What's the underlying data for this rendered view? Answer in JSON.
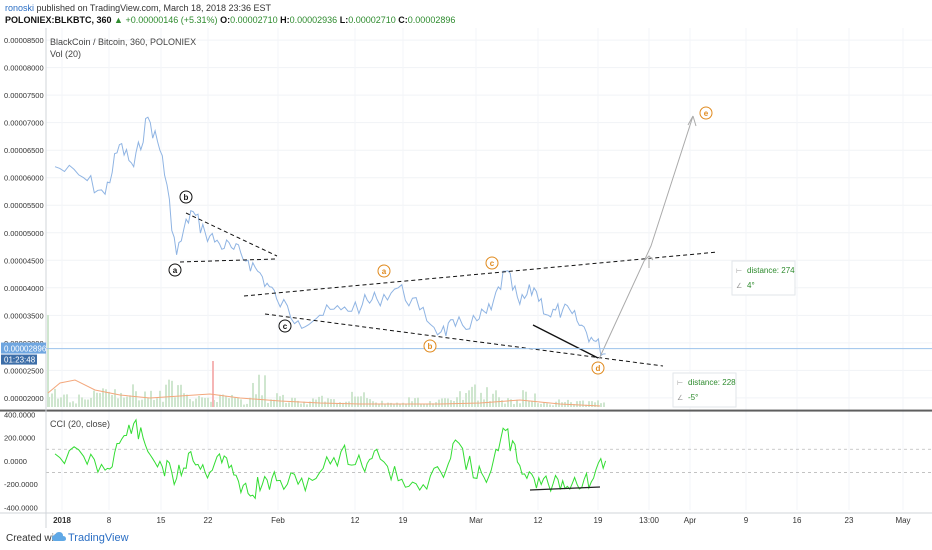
{
  "header": {
    "author": "ronoski",
    "published": "published on TradingView.com, March 18, 2018 23:36 EST",
    "symbol": "POLONIEX:BLKBTC, 360",
    "arrow": "▲",
    "change": "+0.00000146 (+5.31%)",
    "o_label": "O:",
    "o_value": "0.00002710",
    "h_label": "H:",
    "h_value": "0.00002936",
    "l_label": "L:",
    "l_value": "0.00002710",
    "c_label": "C:",
    "c_value": "0.00002896"
  },
  "footer": {
    "created": "Created with",
    "brand": "TradingView"
  },
  "colors": {
    "price": "#8fb4e3",
    "cci": "#33dd33",
    "volume": "#cfe6cf",
    "ema": "#f3a77c",
    "wave": "#e08a1e",
    "forecast": "#aaaaaa",
    "price_line": "#6fa6e0"
  },
  "chart_data": {
    "type": "line",
    "title": "BlackCoin / Bitcoin, 360, POLONIEX",
    "indicator_label": "Vol (20)",
    "cci_label": "CCI (20, close)",
    "y_axis_ticks": [
      "0.00008500",
      "0.00008000",
      "0.00007500",
      "0.00007000",
      "0.00006500",
      "0.00006000",
      "0.00005500",
      "0.00005000",
      "0.00004500",
      "0.00004000",
      "0.00003500",
      "0.00003000",
      "0.00002500",
      "0.00002000"
    ],
    "ylim": [
      1.78e-05,
      8.72e-05
    ],
    "current_price": "0.00002896",
    "countdown": "01:23:48",
    "cci_ticks": [
      "400.0000",
      "200.0000",
      "0.0000",
      "-200.0000",
      "-400.0000"
    ],
    "cci_ylim": [
      -430,
      420
    ],
    "x_axis_ticks": [
      "2018",
      "8",
      "15",
      "22",
      "Feb",
      "12",
      "19",
      "Mar",
      "12",
      "19",
      "13:00",
      "Apr",
      "9",
      "16",
      "23",
      "May"
    ],
    "x": [
      "Jan 01",
      "Jan 05",
      "Jan 08",
      "Jan 10",
      "Jan 12",
      "Jan 14",
      "Jan 16",
      "Jan 18",
      "Jan 20",
      "Jan 22",
      "Jan 24",
      "Jan 26",
      "Jan 28",
      "Jan 30",
      "Feb 01",
      "Feb 04",
      "Feb 07",
      "Feb 10",
      "Feb 13",
      "Feb 15",
      "Feb 18",
      "Feb 21",
      "Feb 24",
      "Feb 26",
      "Mar 01",
      "Mar 03",
      "Mar 05",
      "Mar 07",
      "Mar 09",
      "Mar 11",
      "Mar 13",
      "Mar 15",
      "Mar 17",
      "Mar 19"
    ],
    "series": [
      {
        "values": [
          6.2e-05,
          6e-05,
          5.7e-05,
          6.6e-05,
          6.2e-05,
          7.1e-05,
          6.4e-05,
          4.6e-05,
          5.4e-05,
          5e-05,
          4.8e-05,
          4.7e-05,
          4.5e-05,
          4.2e-05,
          3.8e-05,
          3.4e-05,
          3.5e-05,
          3.6e-05,
          3.7e-05,
          3.8e-05,
          4e-05,
          3.6e-05,
          3.2e-05,
          3.3e-05,
          3.4e-05,
          3.6e-05,
          4.3e-05,
          3.7e-05,
          4e-05,
          3.5e-05,
          3.6e-05,
          3.4e-05,
          3.1e-05,
          2.8e-05
        ]
      },
      {
        "values": [
          60,
          40,
          -80,
          150,
          320,
          80,
          -50,
          -150,
          80,
          -100,
          60,
          -120,
          -280,
          -200,
          -170,
          -200,
          -100,
          80,
          -50,
          100,
          -170,
          -250,
          -100,
          180,
          -150,
          -80,
          260,
          -40,
          -150,
          -200,
          -170,
          -200,
          -180,
          0
        ]
      }
    ],
    "volume": [
      0.6,
      0.4,
      0.5,
      0.7,
      0.6,
      0.8,
      0.5,
      0.9,
      0.5,
      0.3,
      0.4,
      0.3,
      1.0,
      0.5,
      0.3,
      0.3,
      0.4,
      0.2,
      0.5,
      0.3,
      0.2,
      0.3,
      0.2,
      0.3,
      0.5,
      0.7,
      0.6,
      0.3,
      0.5,
      0.2,
      0.3,
      0.2,
      0.2,
      0.2
    ],
    "annotations": {
      "labels": [
        "a",
        "b",
        "c",
        "a",
        "b",
        "c",
        "d",
        "e"
      ],
      "distance_1": "distance: 274",
      "angle_1": "4°",
      "distance_2": "distance: 228",
      "angle_2": "-5°"
    }
  }
}
